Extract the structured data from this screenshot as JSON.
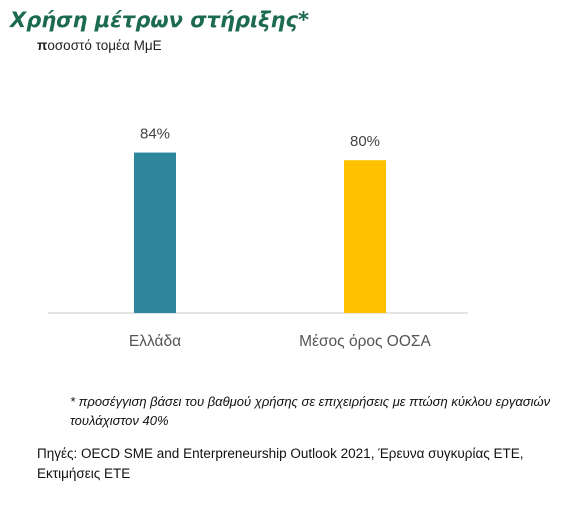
{
  "chart_data": {
    "type": "bar",
    "title": "Χρήση μέτρων στήριξης*",
    "subtitle_first": "π",
    "subtitle_rest": "οσοστό τομέα ΜμΕ",
    "categories": [
      "Ελλάδα",
      "Μέσος όρος ΟΟΣΑ"
    ],
    "values": [
      84,
      80
    ],
    "data_labels": [
      "84%",
      "80%"
    ],
    "colors": [
      "#2e869c",
      "#ffc000"
    ],
    "ylim": [
      0,
      100
    ],
    "grid": false,
    "xlabel": "",
    "ylabel": ""
  },
  "footnote": "* προσέγγιση βάσει του βαθμού χρήσης σε επιχειρήσεις με πτώση κύκλου εργασιών τουλάχιστον 40%",
  "source": "Πηγές: OECD SME and Enterpreneurship Outlook 2021, Έρευνα συγκυρίας ΕΤΕ, Εκτιμήσεις ΕΤΕ"
}
